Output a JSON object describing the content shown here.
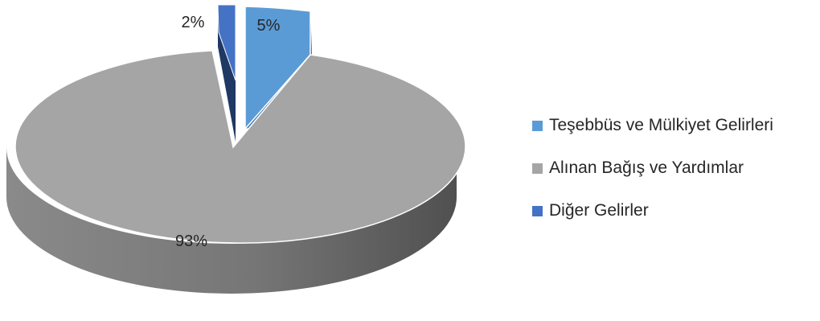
{
  "chart_data": {
    "type": "pie",
    "variant": "3d-exploded",
    "title": "",
    "legend_position": "right",
    "slices": [
      {
        "name": "Teşebbüs ve Mülkiyet Gelirleri",
        "value": 5,
        "label": "5%",
        "color": "#5b9bd5",
        "side_color": "#3f76ac"
      },
      {
        "name": "Alınan Bağış ve Yardımlar",
        "value": 93,
        "label": "93%",
        "color": "#a5a5a5",
        "side_color": "#6e6e6e"
      },
      {
        "name": "Diğer Gelirler",
        "value": 2,
        "label": "2%",
        "color": "#4472c4",
        "side_color": "#1f3864"
      }
    ]
  }
}
